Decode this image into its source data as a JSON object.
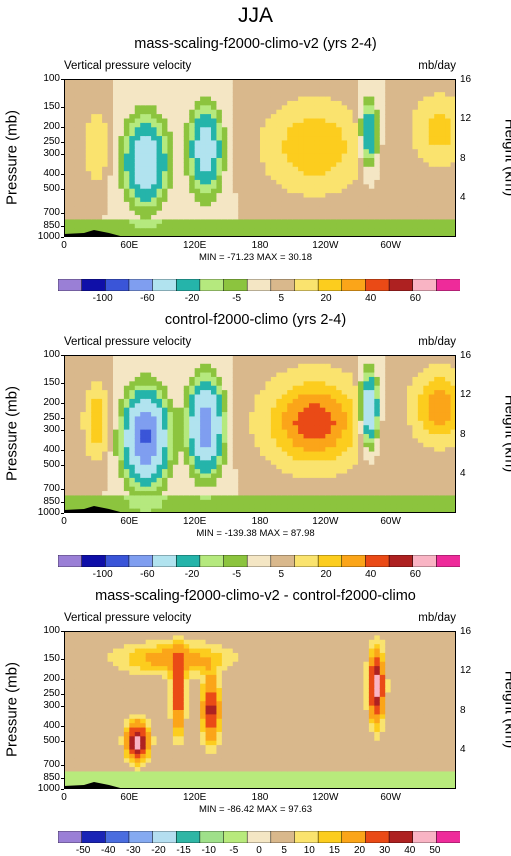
{
  "figure_title": "JJA",
  "chart_data": [
    {
      "type": "heatmap",
      "title": "mass-scaling-f2000-climo-v2 (yrs 2-4)",
      "left_label": "Vertical pressure velocity",
      "units": "mb/day",
      "ylabel": "Pressure (mb)",
      "ylabel_right": "Height (km)",
      "yscale": "log",
      "yticks": [
        "100",
        "150",
        "200",
        "250",
        "300",
        "400",
        "500",
        "700",
        "850",
        "1000"
      ],
      "ytick_values": [
        100,
        150,
        200,
        250,
        300,
        400,
        500,
        700,
        850,
        1000
      ],
      "yticks_right": [
        "16",
        "12",
        "8",
        "4"
      ],
      "yticks_right_values": [
        16,
        12,
        8,
        4
      ],
      "xlim": [
        0,
        360
      ],
      "xticks": [
        "0",
        "60E",
        "120E",
        "180",
        "120W",
        "60W"
      ],
      "xtick_values": [
        0,
        60,
        120,
        180,
        240,
        300
      ],
      "stats": "MIN = -71.23  MAX =  30.18",
      "colorbar_labels": [
        "-100",
        "-60",
        "-20",
        "-5",
        "5",
        "20",
        "40",
        "60"
      ],
      "colorbar_levels": [
        -120,
        -100,
        -80,
        -60,
        -40,
        -20,
        -10,
        -5,
        0,
        5,
        10,
        20,
        30,
        40,
        50,
        60,
        70
      ],
      "colorbar_colors": [
        "#9a7fd6",
        "#0f0fa8",
        "#3a55d8",
        "#7f9ef0",
        "#b1e3ef",
        "#25b4aa",
        "#b5e97e",
        "#8cc43e",
        "#f4e6c4",
        "#d9b88c",
        "#fae36e",
        "#fccd1e",
        "#fba519",
        "#ea4a16",
        "#ae2121",
        "#f9b4c4",
        "#ee2b9a"
      ]
    },
    {
      "type": "heatmap",
      "title": "control-f2000-climo (yrs 2-4)",
      "left_label": "Vertical pressure velocity",
      "units": "mb/day",
      "ylabel": "Pressure (mb)",
      "ylabel_right": "Height (km)",
      "yscale": "log",
      "yticks": [
        "100",
        "150",
        "200",
        "250",
        "300",
        "400",
        "500",
        "700",
        "850",
        "1000"
      ],
      "ytick_values": [
        100,
        150,
        200,
        250,
        300,
        400,
        500,
        700,
        850,
        1000
      ],
      "yticks_right": [
        "16",
        "12",
        "8",
        "4"
      ],
      "yticks_right_values": [
        16,
        12,
        8,
        4
      ],
      "xlim": [
        0,
        360
      ],
      "xticks": [
        "0",
        "60E",
        "120E",
        "180",
        "120W",
        "60W"
      ],
      "xtick_values": [
        0,
        60,
        120,
        180,
        240,
        300
      ],
      "stats": "MIN = -139.38  MAX =  87.98",
      "colorbar_labels": [
        "-100",
        "-60",
        "-20",
        "-5",
        "5",
        "20",
        "40",
        "60"
      ],
      "colorbar_levels": [
        -120,
        -100,
        -80,
        -60,
        -40,
        -20,
        -10,
        -5,
        0,
        5,
        10,
        20,
        30,
        40,
        50,
        60,
        70
      ],
      "colorbar_colors": [
        "#9a7fd6",
        "#0f0fa8",
        "#3a55d8",
        "#7f9ef0",
        "#b1e3ef",
        "#25b4aa",
        "#b5e97e",
        "#8cc43e",
        "#f4e6c4",
        "#d9b88c",
        "#fae36e",
        "#fccd1e",
        "#fba519",
        "#ea4a16",
        "#ae2121",
        "#f9b4c4",
        "#ee2b9a"
      ]
    },
    {
      "type": "heatmap",
      "title": "mass-scaling-f2000-climo-v2 - control-f2000-climo",
      "left_label": "Vertical pressure velocity",
      "units": "mb/day",
      "ylabel": "Pressure (mb)",
      "ylabel_right": "Height (km)",
      "yscale": "log",
      "yticks": [
        "100",
        "150",
        "200",
        "250",
        "300",
        "400",
        "500",
        "700",
        "850",
        "1000"
      ],
      "ytick_values": [
        100,
        150,
        200,
        250,
        300,
        400,
        500,
        700,
        850,
        1000
      ],
      "yticks_right": [
        "16",
        "12",
        "8",
        "4"
      ],
      "yticks_right_values": [
        16,
        12,
        8,
        4
      ],
      "xlim": [
        0,
        360
      ],
      "xticks": [
        "0",
        "60E",
        "120E",
        "180",
        "120W",
        "60W"
      ],
      "xtick_values": [
        0,
        60,
        120,
        180,
        240,
        300
      ],
      "stats": "MIN = -86.42  MAX =  97.63",
      "colorbar_labels": [
        "-50",
        "-40",
        "-30",
        "-20",
        "-15",
        "-10",
        "-5",
        "0",
        "5",
        "10",
        "15",
        "20",
        "30",
        "40",
        "50"
      ],
      "colorbar_levels": [
        -60,
        -50,
        -40,
        -30,
        -20,
        -15,
        -10,
        -5,
        0,
        5,
        10,
        15,
        20,
        30,
        40,
        50,
        60
      ],
      "colorbar_colors": [
        "#9a7fd6",
        "#1a24b6",
        "#4a6ddf",
        "#85aaf1",
        "#b4def0",
        "#2fb6a5",
        "#9fe08a",
        "#b8ea7c",
        "#f4e6c4",
        "#d9b88c",
        "#fae36e",
        "#fccd1e",
        "#fba519",
        "#ea4a16",
        "#ae2121",
        "#f9b4c4",
        "#ee2b9a"
      ]
    }
  ]
}
